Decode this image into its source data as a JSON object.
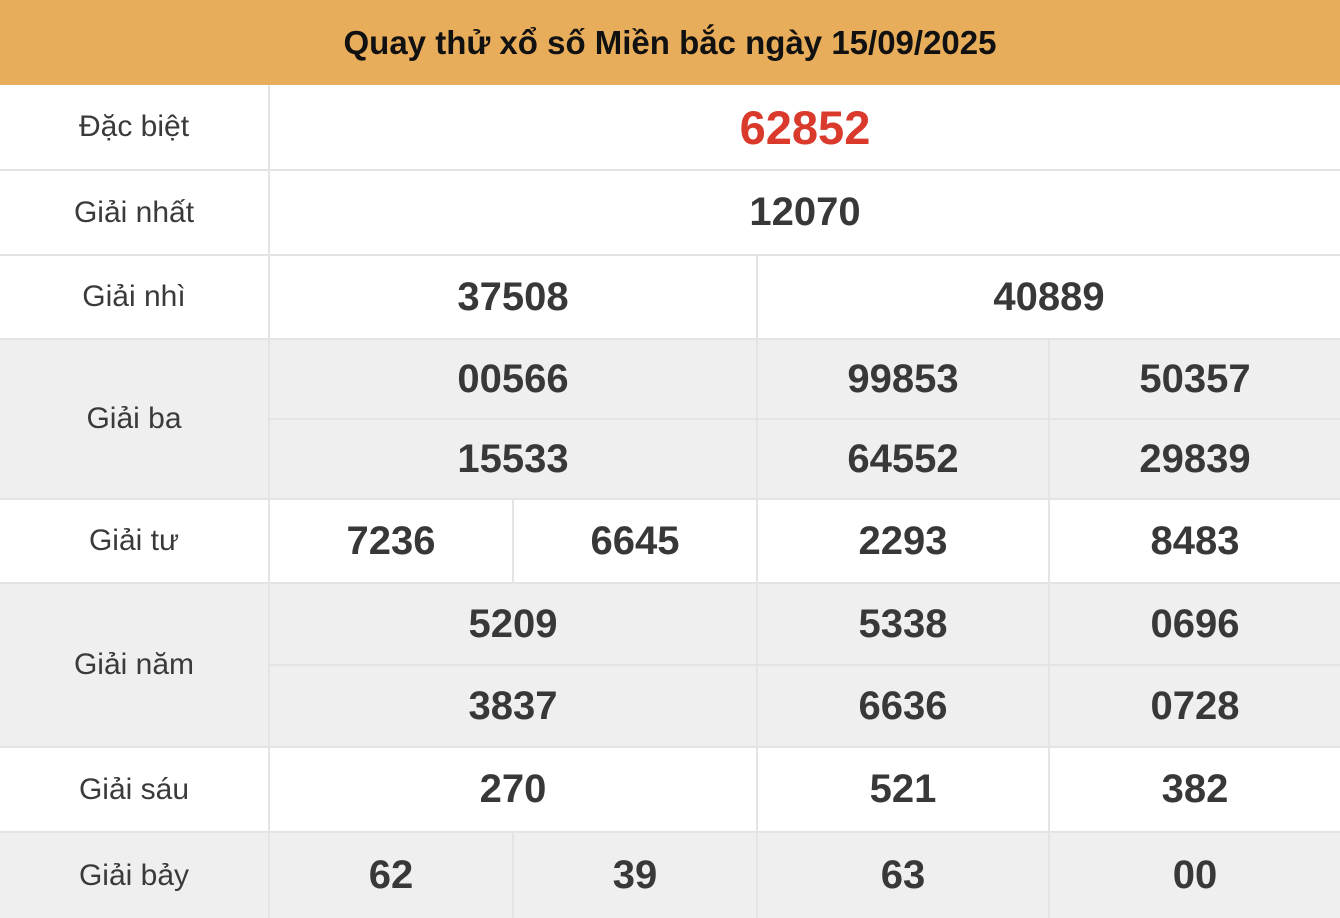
{
  "title": "Quay thử xổ số Miền bắc ngày 15/09/2025",
  "colors": {
    "header_bg": "#e8ad5b",
    "special_number_red": "#d93a2b",
    "number_text": "#383838",
    "label_text": "#3a3a3a",
    "alt_row_bg": "#efefef",
    "border": "#e4e4e4"
  },
  "prizes": [
    {
      "label": "Đặc biệt",
      "numbers": [
        "62852"
      ]
    },
    {
      "label": "Giải nhất",
      "numbers": [
        "12070"
      ]
    },
    {
      "label": "Giải nhì",
      "numbers": [
        "37508",
        "40889"
      ]
    },
    {
      "label": "Giải ba",
      "numbers": [
        "00566",
        "99853",
        "50357",
        "15533",
        "64552",
        "29839"
      ]
    },
    {
      "label": "Giải tư",
      "numbers": [
        "7236",
        "6645",
        "2293",
        "8483"
      ]
    },
    {
      "label": "Giải năm",
      "numbers": [
        "5209",
        "5338",
        "0696",
        "3837",
        "6636",
        "0728"
      ]
    },
    {
      "label": "Giải sáu",
      "numbers": [
        "270",
        "521",
        "382"
      ]
    },
    {
      "label": "Giải bảy",
      "numbers": [
        "62",
        "39",
        "63",
        "00"
      ]
    }
  ]
}
